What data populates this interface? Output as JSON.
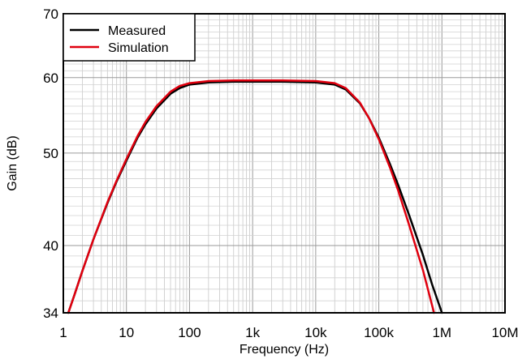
{
  "chart_data": {
    "type": "line",
    "title": "",
    "xlabel": "Frequency (Hz)",
    "ylabel": "Gain (dB)",
    "x_scale": "log",
    "y_scale": "log",
    "xlim": [
      1,
      10000000
    ],
    "ylim": [
      34,
      70
    ],
    "grid": true,
    "legend_position": "top-left",
    "x_ticks": [
      1,
      10,
      100,
      1000,
      10000,
      100000,
      1000000,
      10000000
    ],
    "x_tick_labels": [
      "1",
      "10",
      "100",
      "1k",
      "10k",
      "100k",
      "1M",
      "10M"
    ],
    "y_ticks": [
      34,
      40,
      50,
      60,
      70
    ],
    "y_tick_labels": [
      "34",
      "40",
      "50",
      "60",
      "70"
    ],
    "y_minor_gridlines": [
      35,
      36,
      37,
      38,
      39,
      41,
      42,
      43,
      44,
      45,
      46,
      47,
      48,
      49,
      51,
      52,
      53,
      54,
      55,
      56,
      57,
      58,
      59,
      61,
      62,
      63,
      64,
      65,
      66,
      67,
      68,
      69
    ],
    "series": [
      {
        "name": "Measured",
        "color": "#000000",
        "points": [
          [
            1.2,
            34
          ],
          [
            1.5,
            35.5
          ],
          [
            2,
            37.6
          ],
          [
            3,
            40.6
          ],
          [
            5,
            44.3
          ],
          [
            7,
            46.7
          ],
          [
            10,
            49.1
          ],
          [
            15,
            51.9
          ],
          [
            20,
            53.6
          ],
          [
            30,
            55.7
          ],
          [
            50,
            57.7
          ],
          [
            70,
            58.5
          ],
          [
            100,
            59
          ],
          [
            200,
            59.3
          ],
          [
            500,
            59.4
          ],
          [
            1000,
            59.4
          ],
          [
            3000,
            59.4
          ],
          [
            10000,
            59.3
          ],
          [
            20000,
            59
          ],
          [
            30000,
            58.3
          ],
          [
            50000,
            56.4
          ],
          [
            70000,
            54.4
          ],
          [
            100000,
            51.9
          ],
          [
            150000,
            48.7
          ],
          [
            200000,
            46.4
          ],
          [
            300000,
            43.1
          ],
          [
            500000,
            39.1
          ],
          [
            700000,
            36.4
          ],
          [
            1000000,
            34
          ]
        ]
      },
      {
        "name": "Simulation",
        "color": "#e0000f",
        "points": [
          [
            1.2,
            34
          ],
          [
            1.5,
            35.5
          ],
          [
            2,
            37.6
          ],
          [
            3,
            40.6
          ],
          [
            5,
            44.4
          ],
          [
            7,
            46.8
          ],
          [
            10,
            49.3
          ],
          [
            15,
            52.1
          ],
          [
            20,
            53.9
          ],
          [
            30,
            56
          ],
          [
            50,
            58
          ],
          [
            70,
            58.8
          ],
          [
            100,
            59.2
          ],
          [
            200,
            59.5
          ],
          [
            500,
            59.6
          ],
          [
            1000,
            59.6
          ],
          [
            3000,
            59.6
          ],
          [
            10000,
            59.5
          ],
          [
            20000,
            59.2
          ],
          [
            30000,
            58.5
          ],
          [
            50000,
            56.5
          ],
          [
            70000,
            54.4
          ],
          [
            100000,
            51.7
          ],
          [
            150000,
            48.3
          ],
          [
            200000,
            45.8
          ],
          [
            300000,
            42.1
          ],
          [
            500000,
            37.7
          ],
          [
            700000,
            34.6
          ],
          [
            750000,
            34
          ]
        ]
      }
    ]
  }
}
